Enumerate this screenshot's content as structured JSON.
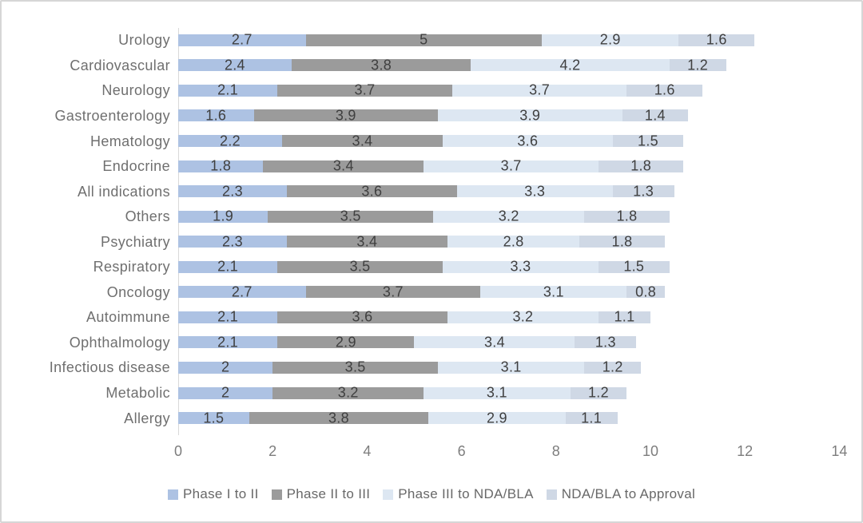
{
  "chart_data": {
    "type": "bar",
    "orientation": "horizontal",
    "stacked": true,
    "title": "",
    "xlabel": "",
    "ylabel": "",
    "xlim": [
      0,
      14
    ],
    "x_ticks": [
      0,
      2,
      4,
      6,
      8,
      10,
      12,
      14
    ],
    "grid": false,
    "legend_position": "bottom",
    "categories": [
      "Urology",
      "Cardiovascular",
      "Neurology",
      "Gastroenterology",
      "Hematology",
      "Endocrine",
      "All indications",
      "Others",
      "Psychiatry",
      "Respiratory",
      "Oncology",
      "Autoimmune",
      "Ophthalmology",
      "Infectious disease",
      "Metabolic",
      "Allergy"
    ],
    "series": [
      {
        "name": "Phase I to II",
        "color": "#adc2e3",
        "values": [
          2.7,
          2.4,
          2.1,
          1.6,
          2.2,
          1.8,
          2.3,
          1.9,
          2.3,
          2.1,
          2.7,
          2.1,
          2.1,
          2,
          2,
          1.5
        ]
      },
      {
        "name": "Phase II to III",
        "color": "#9b9b9b",
        "values": [
          5,
          3.8,
          3.7,
          3.9,
          3.4,
          3.4,
          3.6,
          3.5,
          3.4,
          3.5,
          3.7,
          3.6,
          2.9,
          3.5,
          3.2,
          3.8
        ]
      },
      {
        "name": "Phase III to NDA/BLA",
        "color": "#dde7f2",
        "values": [
          2.9,
          4.2,
          3.7,
          3.9,
          3.6,
          3.7,
          3.3,
          3.2,
          2.8,
          3.3,
          3.1,
          3.2,
          3.4,
          3.1,
          3.1,
          2.9
        ]
      },
      {
        "name": "NDA/BLA to Approval",
        "color": "#cfd8e5",
        "values": [
          1.6,
          1.2,
          1.6,
          1.4,
          1.5,
          1.8,
          1.3,
          1.8,
          1.8,
          1.5,
          0.8,
          1.1,
          1.3,
          1.2,
          1.2,
          1.1
        ]
      }
    ],
    "colors": {
      "axis_line": "#d9d9d9",
      "category_label": "#6f6f6f",
      "value_label": "#3f3f3f",
      "tick_label": "#7d7d7d",
      "legend_label": "#686868"
    }
  }
}
